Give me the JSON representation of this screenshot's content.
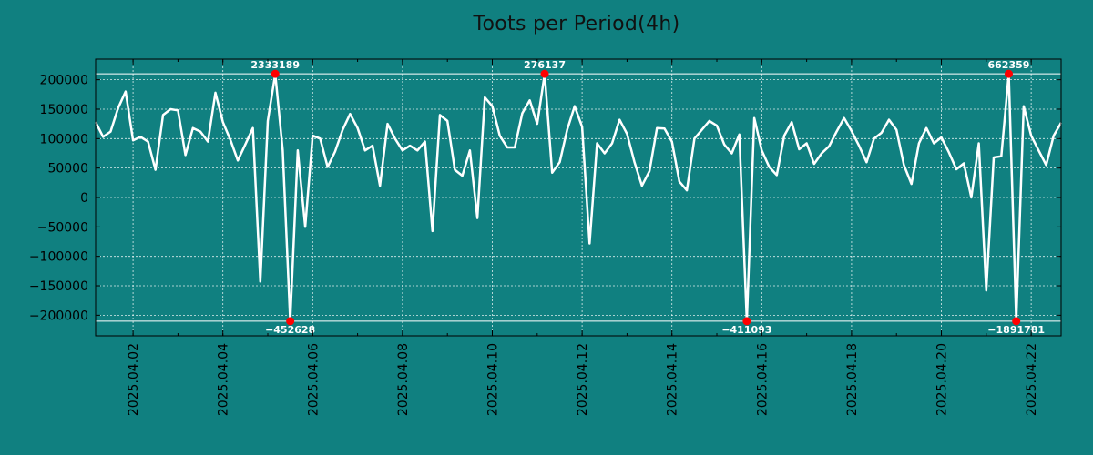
{
  "chart_data": {
    "type": "line",
    "title": "Toots per Period(4h)",
    "xlabel": "",
    "ylabel": "",
    "x_range": [
      "2025.04.01 04:00",
      "2025.04.22 16:00"
    ],
    "ylim": [
      -235000,
      235000
    ],
    "grid": true,
    "clip_lines": {
      "upper": 210000,
      "lower": -210000
    },
    "yticks": [
      -200000,
      -150000,
      -100000,
      -50000,
      0,
      50000,
      100000,
      150000,
      200000
    ],
    "xticks": [
      "2025.04.02",
      "2025.04.04",
      "2025.04.06",
      "2025.04.08",
      "2025.04.10",
      "2025.04.12",
      "2025.04.14",
      "2025.04.16",
      "2025.04.18",
      "2025.04.20",
      "2025.04.22"
    ],
    "period_hours": 4,
    "series": [
      {
        "values": [
          128000,
          103000,
          112000,
          152000,
          180000,
          97000,
          103000,
          95000,
          47000,
          140000,
          150000,
          148000,
          72000,
          118000,
          112000,
          95000,
          178000,
          128000,
          98000,
          63000,
          90000,
          118000,
          -143000,
          130000,
          210000,
          80000,
          -210000,
          80000,
          -50000,
          105000,
          100000,
          52000,
          78000,
          115000,
          142000,
          118000,
          80000,
          88000,
          20000,
          125000,
          100000,
          80000,
          88000,
          80000,
          95000,
          -57000,
          140000,
          130000,
          47000,
          37000,
          80000,
          -35000,
          170000,
          155000,
          105000,
          85000,
          85000,
          143000,
          165000,
          125000,
          210000,
          42000,
          60000,
          115000,
          155000,
          120000,
          -78000,
          92000,
          75000,
          92000,
          132000,
          108000,
          60000,
          20000,
          45000,
          118000,
          117000,
          95000,
          27000,
          12000,
          100000,
          115000,
          130000,
          122000,
          90000,
          75000,
          107000,
          -210000,
          135000,
          80000,
          52000,
          38000,
          105000,
          128000,
          82000,
          92000,
          57000,
          75000,
          87000,
          112000,
          135000,
          113000,
          88000,
          60000,
          100000,
          110000,
          132000,
          115000,
          55000,
          23000,
          92000,
          118000,
          92000,
          102000,
          77000,
          48000,
          58000,
          0,
          92000,
          -158000,
          68000,
          70000,
          210000,
          -210000,
          155000,
          105000,
          80000,
          55000,
          105000,
          127000
        ]
      }
    ],
    "annotations": [
      {
        "label": "2333189",
        "index": 24,
        "y": 210000,
        "position": "above"
      },
      {
        "label": "-452628",
        "index": 26,
        "y": -210000,
        "position": "below"
      },
      {
        "label": "276137",
        "index": 60,
        "y": 210000,
        "position": "above"
      },
      {
        "label": "-411093",
        "index": 87,
        "y": -210000,
        "position": "below"
      },
      {
        "label": "662359",
        "index": 122,
        "y": 210000,
        "position": "above"
      },
      {
        "label": "-1891781",
        "index": 123,
        "y": -210000,
        "position": "below"
      }
    ],
    "colors": {
      "background": "#108080",
      "line": "#ffffff",
      "marker": "#ff0000",
      "axes": "#000000",
      "grid": "#ffffff"
    }
  }
}
